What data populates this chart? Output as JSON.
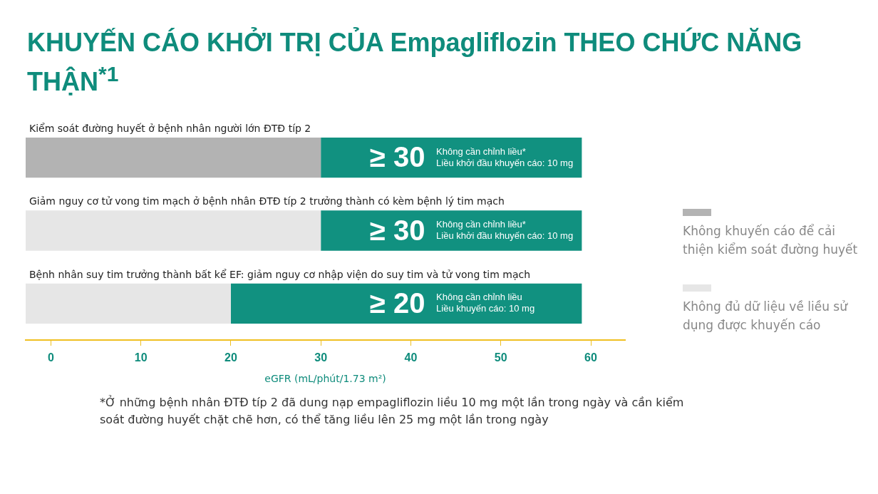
{
  "chart_data": {
    "type": "bar",
    "orientation": "horizontal",
    "title": "KHUYẾN CÁO KHỞI TRỊ CỦA Empagliflozin THEO CHỨC NĂNG THẬN$^{*1}$",
    "xlabel": "eGFR (mL/phút/1.73 m²)",
    "categories": [
      "Kiểm soát đường huyết ở bệnh nhân người lớn ĐTĐ típ 2",
      "Giảm nguy cơ tử vong tim mạch ở bệnh nhân ĐTĐ típ 2 trưởng thành có kèm bệnh lý tim mạch",
      "Bệnh nhân suy tim trưởng thành bất kể EF: giảm nguy cơ nhập viện do suy tim và tử vong tim mạch"
    ],
    "series": [
      {
        "name": "Không khuyến cáo để cải thiện kiểm soát đường huyết",
        "color": "#b3b3b3",
        "base": [
          -2.8,
          null,
          null
        ],
        "values": [
          32.8,
          null,
          null
        ]
      },
      {
        "name": "Không đủ dữ liệu về liều sử dụng được khuyến cáo",
        "color": "#e6e6e6",
        "base": [
          null,
          -2.8,
          -2.8
        ],
        "values": [
          null,
          32.8,
          22.8
        ]
      },
      {
        "color": "#119180",
        "base": [
          30,
          30,
          20
        ],
        "values": [
          29,
          29,
          39
        ],
        "value_labels": [
          "≥ 30",
          "≥ 30",
          "≥ 20"
        ]
      }
    ],
    "xlim": [
      -2.8,
      63.8
    ],
    "xticks": [
      0,
      10,
      20,
      30,
      40,
      50,
      60
    ],
    "legend": "right",
    "annotations": [
      "Không cần chỉnh liều*",
      "Liều khởi đầu khuyến cáo: 10 mg",
      "Không cần chỉnh liều*",
      "Liều khởi đầu khuyến cáo: 10 mg",
      "Không cần chỉnh liều",
      "Liều khuyến cáo: 10 mg",
      "*Ở những bệnh nhân ĐTĐ típ 2 đã dung nạp empagliflozin liều 10 mg một lần trong ngày và cần kiểm soát đường huyết chặt chẽ hơn, có thể tăng liều lên 25 mg một lần trong ngày"
    ]
  }
}
